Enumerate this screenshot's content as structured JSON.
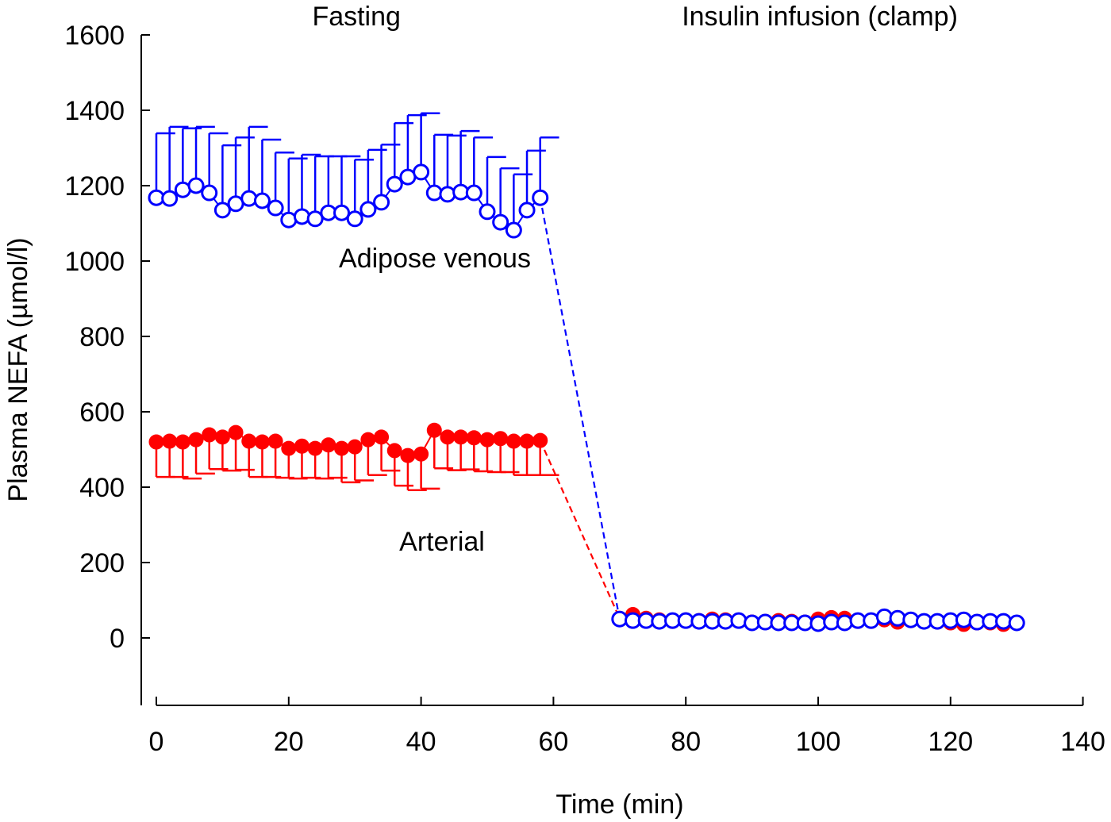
{
  "chart_data": {
    "type": "scatter",
    "title": "",
    "xlabel": "Time (min)",
    "ylabel": "Plasma NEFA (µmol/l)",
    "xlim": [
      -2,
      140
    ],
    "ylim": [
      -180,
      1600
    ],
    "x_ticks": [
      0,
      20,
      40,
      60,
      80,
      100,
      120,
      140
    ],
    "x_tick_labels": [
      "0",
      "20",
      "40",
      "60",
      "80",
      "100",
      "120",
      "140"
    ],
    "y_ticks": [
      0,
      200,
      400,
      600,
      800,
      1000,
      1200,
      1400,
      1600
    ],
    "y_tick_labels": [
      "0",
      "200",
      "400",
      "600",
      "800",
      "1000",
      "1200",
      "1400",
      "1600"
    ],
    "grid": false,
    "phase_labels": [
      {
        "text": "Fasting",
        "x": 30
      },
      {
        "text": "Insulin infusion (clamp)",
        "x": 106
      }
    ],
    "series": [
      {
        "name": "Adipose venous",
        "label": "Adipose venous",
        "color": "#0000ff",
        "marker": "open-circle",
        "error_direction": "up",
        "fasting": {
          "x": [
            0,
            2,
            4,
            6,
            8,
            10,
            12,
            14,
            16,
            18,
            20,
            22,
            24,
            26,
            28,
            30,
            32,
            34,
            36,
            38,
            40,
            42,
            44,
            46,
            48,
            50,
            52,
            54,
            56,
            58
          ],
          "y": [
            1168,
            1166,
            1189,
            1200,
            1181,
            1135,
            1152,
            1166,
            1160,
            1141,
            1109,
            1118,
            1112,
            1128,
            1128,
            1112,
            1137,
            1156,
            1204,
            1223,
            1236,
            1181,
            1177,
            1183,
            1181,
            1131,
            1103,
            1082,
            1135,
            1168
          ],
          "err_upper": [
            1339,
            1356,
            1352,
            1356,
            1339,
            1307,
            1328,
            1356,
            1322,
            1288,
            1272,
            1282,
            1278,
            1278,
            1278,
            1269,
            1295,
            1309,
            1366,
            1387,
            1392,
            1335,
            1333,
            1345,
            1328,
            1276,
            1246,
            1230,
            1293,
            1328
          ]
        },
        "clamp": {
          "x": [
            70,
            72,
            74,
            76,
            78,
            80,
            82,
            84,
            86,
            88,
            90,
            92,
            94,
            96,
            98,
            100,
            102,
            104,
            106,
            108,
            110,
            112,
            114,
            116,
            118,
            120,
            122,
            124,
            126,
            128,
            130
          ],
          "y": [
            50,
            46,
            46,
            44,
            46,
            46,
            44,
            44,
            44,
            46,
            40,
            42,
            40,
            40,
            40,
            38,
            42,
            40,
            46,
            46,
            56,
            52,
            48,
            44,
            44,
            46,
            48,
            42,
            44,
            44,
            40
          ]
        }
      },
      {
        "name": "Arterial",
        "label": "Arterial",
        "color": "#ff0000",
        "marker": "filled-circle",
        "error_direction": "down",
        "fasting": {
          "x": [
            0,
            2,
            4,
            6,
            8,
            10,
            12,
            14,
            16,
            18,
            20,
            22,
            24,
            26,
            28,
            30,
            32,
            34,
            36,
            38,
            40,
            42,
            44,
            46,
            48,
            50,
            52,
            54,
            56,
            58
          ],
          "y": [
            520,
            522,
            520,
            526,
            539,
            533,
            545,
            522,
            520,
            522,
            503,
            509,
            503,
            512,
            503,
            507,
            526,
            533,
            497,
            484,
            488,
            551,
            533,
            533,
            531,
            526,
            529,
            522,
            522,
            524
          ],
          "err_lower": [
            427,
            427,
            423,
            436,
            448,
            444,
            446,
            427,
            427,
            425,
            423,
            425,
            423,
            425,
            413,
            418,
            432,
            444,
            404,
            392,
            396,
            450,
            445,
            447,
            442,
            440,
            440,
            432,
            432,
            432
          ]
        },
        "clamp": {
          "x": [
            70,
            72,
            74,
            76,
            78,
            80,
            82,
            84,
            86,
            88,
            90,
            92,
            94,
            96,
            98,
            100,
            102,
            104,
            106,
            108,
            110,
            112,
            114,
            116,
            118,
            120,
            122,
            124,
            126,
            128,
            130
          ],
          "y": [
            52,
            62,
            52,
            48,
            44,
            48,
            46,
            50,
            48,
            46,
            42,
            44,
            46,
            44,
            42,
            50,
            54,
            52,
            44,
            44,
            48,
            42,
            46,
            44,
            42,
            40,
            36,
            40,
            40,
            36,
            40
          ]
        }
      }
    ],
    "transition": {
      "style": "dashed",
      "from_x": 58,
      "to_x": 70
    }
  }
}
